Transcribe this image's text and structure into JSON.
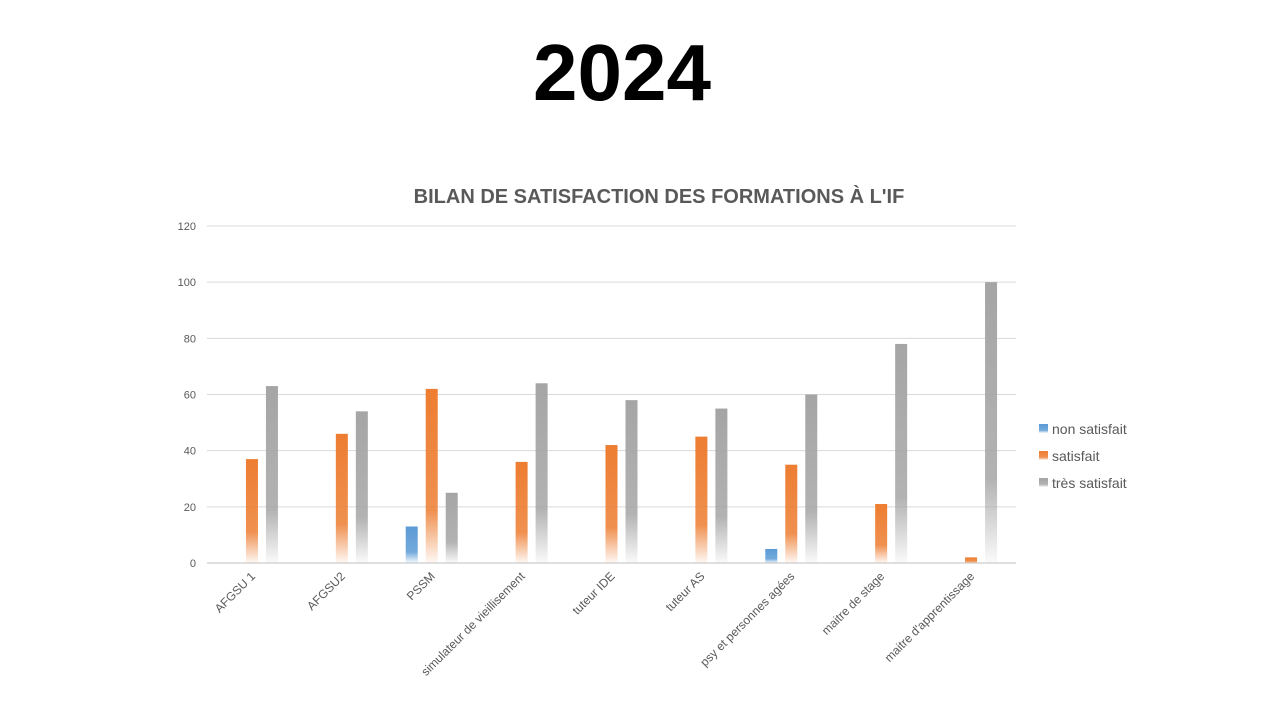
{
  "slide": {
    "title": "2024"
  },
  "chart_data": {
    "type": "bar",
    "title": "BILAN DE SATISFACTION DES FORMATIONS À L'IF",
    "xlabel": "",
    "ylabel": "",
    "ylim": [
      0,
      120
    ],
    "yticks": [
      0,
      20,
      40,
      60,
      80,
      100,
      120
    ],
    "grid": true,
    "legend_position": "right",
    "categories": [
      "AFGSU 1",
      "AFGSU2",
      "PSSM",
      "simulateur de vieillisement",
      "tuteur  IDE",
      "tuteur AS",
      "psy et personnes agées",
      "maitre de stage",
      "maitre d'apprentissage"
    ],
    "series": [
      {
        "name": "non satisfait",
        "color": "#5b9bd5",
        "values": [
          0,
          0,
          13,
          0,
          0,
          0,
          5,
          0,
          0
        ]
      },
      {
        "name": "satisfait",
        "color": "#ed7d31",
        "values": [
          37,
          46,
          62,
          36,
          42,
          45,
          35,
          21,
          2
        ]
      },
      {
        "name": "très satisfait",
        "color": "#a5a5a5",
        "values": [
          63,
          54,
          25,
          64,
          58,
          55,
          60,
          78,
          100
        ]
      }
    ]
  }
}
